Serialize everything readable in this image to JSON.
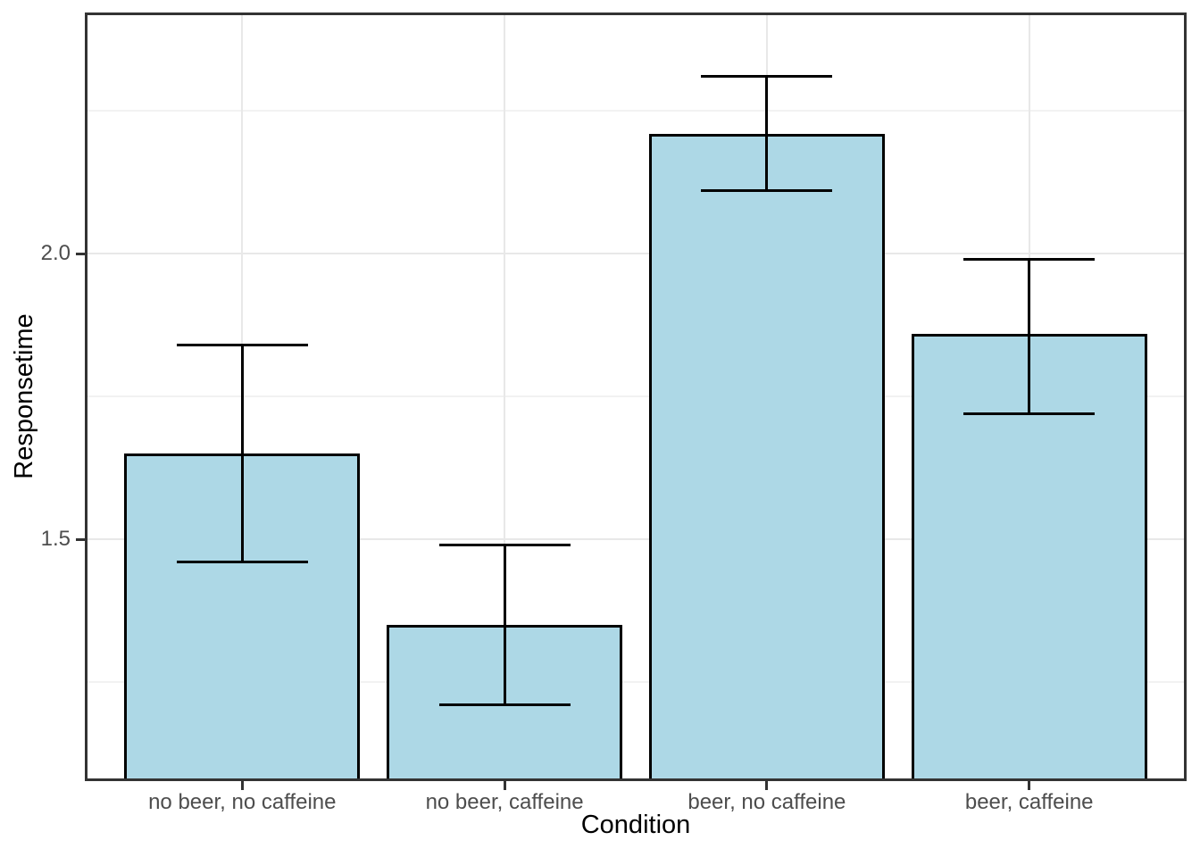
{
  "chart_data": {
    "type": "bar",
    "title": "",
    "xlabel": "Condition",
    "ylabel": "Responsetime",
    "categories": [
      "no beer, no caffeine",
      "no beer, caffeine",
      "beer, no caffeine",
      "beer, caffeine"
    ],
    "values": [
      1.65,
      1.35,
      2.21,
      1.86
    ],
    "error_bars": {
      "upper": [
        1.84,
        1.49,
        2.31,
        1.99
      ],
      "lower": [
        1.46,
        1.21,
        2.11,
        1.72
      ]
    },
    "ylim": [
      1.077,
      2.422
    ],
    "y_major_ticks": [
      1.5,
      2.0
    ],
    "y_tick_labels": [
      "1.5",
      "2.0"
    ],
    "y_minor_gridlines": [
      1.25,
      1.75,
      2.25
    ],
    "x_gridlines_at_categories": true,
    "grid": true,
    "legend": "none",
    "colors": {
      "bar_fill": "#ADD8E6",
      "bar_border": "#000000",
      "error_bar": "#000000",
      "panel_border": "#333333",
      "grid_major": "#E8E8E8",
      "grid_minor": "#F2F2F2",
      "tick_mark": "#333333",
      "tick_label": "#4D4D4D",
      "axis_title": "#000000",
      "background": "#FFFFFF"
    },
    "layout_hints": {
      "bar_rel_width": 0.9,
      "cap_rel_width": 0.5,
      "category_expand": 0.6,
      "legend_position": "none"
    }
  }
}
